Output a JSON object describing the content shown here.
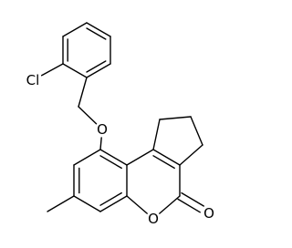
{
  "atoms": {
    "chlorine": "Cl",
    "ether_oxygen": "O",
    "ring_oxygen": "O",
    "carbonyl_oxygen": "O"
  }
}
